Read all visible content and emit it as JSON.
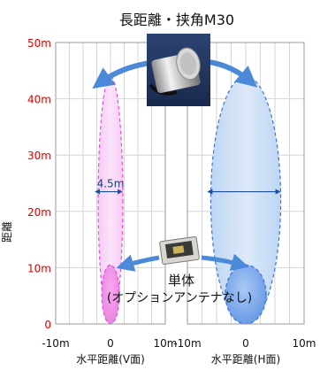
{
  "chart_data": {
    "type": "area",
    "title": "長距離・挟角M30",
    "ylabel": "距離",
    "ylim": [
      0,
      50
    ],
    "y_ticks": [
      "0",
      "10m",
      "20m",
      "30m",
      "40m",
      "50m"
    ],
    "y_tick_values": [
      0,
      10,
      20,
      30,
      40,
      50
    ],
    "grid": true,
    "panels": [
      {
        "name": "V",
        "xlabel": "水平距離(V面)",
        "xlim": [
          -10,
          10
        ],
        "x_ticks": [
          "-10m",
          "0",
          "10m"
        ],
        "x_tick_values": [
          -10,
          0,
          10
        ],
        "color": "#e64ce6",
        "regions": [
          {
            "label": "長距離・挟角M30",
            "x_min": -2.25,
            "x_max": 2.25,
            "y_min": 0,
            "y_max": 44
          },
          {
            "label": "単体",
            "x_min": -1.6,
            "x_max": 1.6,
            "y_min": 0,
            "y_max": 10.5
          }
        ],
        "width_annotation": {
          "text": "4.5m",
          "y": 23.5,
          "x_from": -2.25,
          "x_to": 2.25
        }
      },
      {
        "name": "H",
        "xlabel": "水平距離(H面)",
        "xlim": [
          -10,
          10
        ],
        "x_ticks": [
          "-10m",
          "0",
          "10m"
        ],
        "x_tick_values": [
          -10,
          0,
          10
        ],
        "color": "#3b73d9",
        "regions": [
          {
            "label": "長距離・挟角M30",
            "x_min": -6,
            "x_max": 6,
            "y_min": 0,
            "y_max": 44
          },
          {
            "label": "単体",
            "x_min": -3.5,
            "x_max": 3.5,
            "y_min": 0,
            "y_max": 10.5
          }
        ],
        "width_annotation": {
          "text": "",
          "y": 23.5,
          "x_from": -6,
          "x_to": 6
        }
      }
    ],
    "annotations": {
      "single_line1": "単体",
      "single_line2": "(オプションアンテナなし)"
    }
  }
}
